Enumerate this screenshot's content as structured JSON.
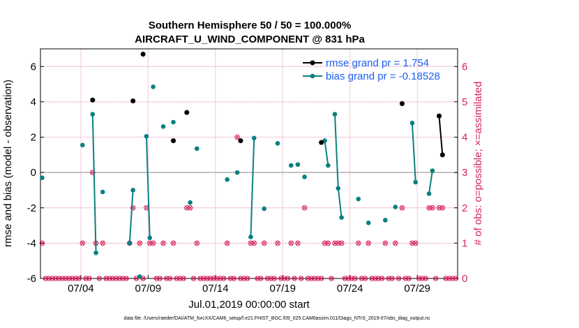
{
  "chart_data": {
    "type": "line",
    "title": "Southern Hemisphere 50 / 50 = 100.000%",
    "subtitle": "AIRCRAFT_U_WIND_COMPONENT @ 831 hPa",
    "xlabel": "Jul.01,2019 00:00:00 start",
    "ylabel": "rmse and bias (model - observation)",
    "y2label": "# of obs: o=possible; ×=assimilated",
    "footer": "data file: /Users/raeder/DAI/ATM_forcXX/CAM6_setup/f.e21.FHIST_BGC.f09_025.CAM6assim.011/Diags_NTrS_2019-07/obs_diag_output.nc",
    "x_range_days": [
      0,
      31
    ],
    "ylim": [
      -6,
      7
    ],
    "y2lim": [
      0,
      6.5
    ],
    "x_tick_positions_days": [
      3,
      8,
      13,
      18,
      23,
      28
    ],
    "x_tick_labels": [
      "07/04",
      "07/09",
      "07/14",
      "07/19",
      "07/24",
      "07/29"
    ],
    "y_ticks": [
      "-6",
      "-4",
      "-2",
      "0",
      "2",
      "4",
      "6"
    ],
    "y2_ticks": [
      "0",
      "1",
      "2",
      "3",
      "4",
      "5",
      "6"
    ],
    "legend": {
      "rmse": "rmse grand pr = 1.754",
      "bias": "bias grand pr = -0.18528",
      "position": "top-right"
    },
    "colors": {
      "rmse": "#000000",
      "bias": "#0a8080",
      "obs": "#d6245c",
      "zero_line": "#b0b0b0",
      "grid": "#f0c8d8"
    },
    "rmse_segments": [
      [
        [
          3.875,
          4.1
        ]
      ],
      [
        [
          6.875,
          4.05
        ]
      ],
      [
        [
          7.625,
          6.7
        ]
      ],
      [
        [
          9.875,
          1.8
        ]
      ],
      [
        [
          10.875,
          3.4
        ]
      ],
      [
        [
          14.875,
          1.8
        ]
      ],
      [
        [
          20.875,
          1.7
        ]
      ],
      [
        [
          26.875,
          3.9
        ]
      ],
      [
        [
          29.625,
          3.2
        ],
        [
          29.875,
          1.0
        ]
      ]
    ],
    "bias_segments": [
      [
        [
          0.125,
          -0.3
        ]
      ],
      [
        [
          3.125,
          1.55
        ]
      ],
      [
        [
          3.875,
          3.3
        ],
        [
          4.125,
          -4.55
        ]
      ],
      [
        [
          4.625,
          -1.1
        ]
      ],
      [
        [
          6.625,
          -4.0
        ],
        [
          6.875,
          -1.0
        ]
      ],
      [
        [
          7.375,
          -5.9
        ]
      ],
      [
        [
          7.875,
          2.05
        ],
        [
          8.125,
          -3.7
        ]
      ],
      [
        [
          8.375,
          4.85
        ]
      ],
      [
        [
          9.125,
          2.6
        ]
      ],
      [
        [
          9.875,
          2.85
        ]
      ],
      [
        [
          11.125,
          -1.7
        ]
      ],
      [
        [
          11.625,
          1.35
        ]
      ],
      [
        [
          13.875,
          -0.4
        ]
      ],
      [
        [
          14.625,
          0.0
        ]
      ],
      [
        [
          15.625,
          -3.65
        ],
        [
          15.875,
          1.95
        ]
      ],
      [
        [
          16.625,
          -2.05
        ]
      ],
      [
        [
          17.625,
          1.65
        ]
      ],
      [
        [
          18.625,
          0.4
        ]
      ],
      [
        [
          19.125,
          0.45
        ]
      ],
      [
        [
          19.625,
          -0.25
        ]
      ],
      [
        [
          21.125,
          1.8
        ],
        [
          21.375,
          0.4
        ]
      ],
      [
        [
          21.875,
          3.3
        ],
        [
          22.125,
          -0.9
        ],
        [
          22.375,
          -2.55
        ]
      ],
      [
        [
          23.625,
          -1.5
        ]
      ],
      [
        [
          24.375,
          -2.85
        ]
      ],
      [
        [
          25.625,
          -2.7
        ]
      ],
      [
        [
          26.375,
          -1.95
        ]
      ],
      [
        [
          27.625,
          2.8
        ],
        [
          27.875,
          -0.55
        ]
      ],
      [
        [
          28.875,
          -1.2
        ],
        [
          29.125,
          0.1
        ]
      ]
    ],
    "obs_possible": [
      [
        0.125,
        1
      ],
      [
        3.125,
        1
      ],
      [
        3.875,
        3
      ],
      [
        4.125,
        1
      ],
      [
        4.625,
        1
      ],
      [
        6.625,
        1
      ],
      [
        6.875,
        2
      ],
      [
        7.375,
        1
      ],
      [
        7.875,
        2
      ],
      [
        8.125,
        1
      ],
      [
        8.375,
        1
      ],
      [
        9.125,
        1
      ],
      [
        9.875,
        1
      ],
      [
        10.875,
        2
      ],
      [
        11.125,
        2
      ],
      [
        11.625,
        1
      ],
      [
        13.875,
        1
      ],
      [
        14.625,
        4
      ],
      [
        15.625,
        1
      ],
      [
        15.875,
        1
      ],
      [
        16.625,
        1
      ],
      [
        17.625,
        1
      ],
      [
        18.625,
        1
      ],
      [
        19.125,
        1
      ],
      [
        19.625,
        2
      ],
      [
        21.125,
        1
      ],
      [
        21.375,
        1
      ],
      [
        21.875,
        1
      ],
      [
        22.125,
        1
      ],
      [
        22.375,
        1
      ],
      [
        23.625,
        1
      ],
      [
        24.375,
        1
      ],
      [
        25.625,
        1
      ],
      [
        26.375,
        1
      ],
      [
        26.875,
        2
      ],
      [
        27.625,
        1
      ],
      [
        27.875,
        1
      ],
      [
        28.875,
        2
      ],
      [
        29.125,
        2
      ],
      [
        29.625,
        2
      ],
      [
        29.875,
        2
      ]
    ],
    "obs_assimilated": [
      [
        0.125,
        1
      ],
      [
        3.125,
        1
      ],
      [
        3.875,
        3
      ],
      [
        4.125,
        1
      ],
      [
        4.625,
        1
      ],
      [
        6.625,
        1
      ],
      [
        6.875,
        2
      ],
      [
        7.375,
        1
      ],
      [
        7.875,
        2
      ],
      [
        8.125,
        1
      ],
      [
        8.375,
        1
      ],
      [
        9.125,
        1
      ],
      [
        9.875,
        1
      ],
      [
        10.875,
        2
      ],
      [
        11.125,
        2
      ],
      [
        11.625,
        1
      ],
      [
        13.875,
        1
      ],
      [
        14.625,
        4
      ],
      [
        15.625,
        1
      ],
      [
        15.875,
        1
      ],
      [
        16.625,
        1
      ],
      [
        17.625,
        1
      ],
      [
        18.625,
        1
      ],
      [
        19.125,
        1
      ],
      [
        19.625,
        2
      ],
      [
        21.125,
        1
      ],
      [
        21.375,
        1
      ],
      [
        21.875,
        1
      ],
      [
        22.125,
        1
      ],
      [
        22.375,
        1
      ],
      [
        23.625,
        1
      ],
      [
        24.375,
        1
      ],
      [
        25.625,
        1
      ],
      [
        26.375,
        1
      ],
      [
        26.875,
        2
      ],
      [
        27.625,
        1
      ],
      [
        27.875,
        1
      ],
      [
        28.875,
        2
      ],
      [
        29.125,
        2
      ],
      [
        29.625,
        2
      ],
      [
        29.875,
        2
      ]
    ],
    "zero_count_step_days": 0.25
  }
}
